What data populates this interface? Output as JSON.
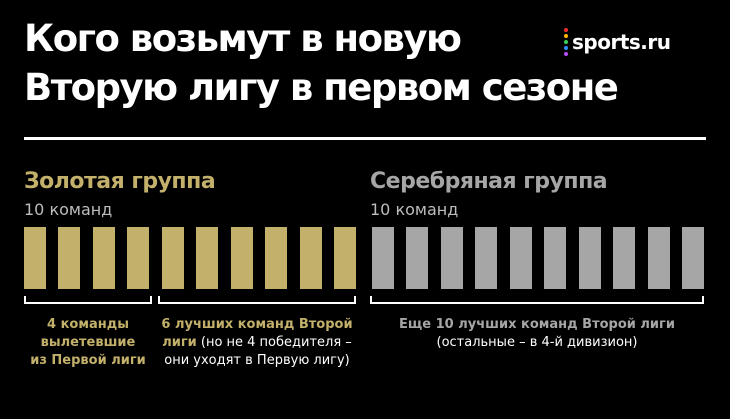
{
  "header": {
    "title_line1": "Кого возьмут в новую",
    "title_line2": "Вторую лигу в первом сезоне",
    "logo_text": "sports.ru",
    "logo_dot_colors": [
      "#ff2d2d",
      "#ffb400",
      "#3ad15a",
      "#2d8cff",
      "#b34dff"
    ]
  },
  "colors": {
    "gold": "#c2b06b",
    "silver": "#a6a6a6",
    "background": "#000000",
    "text": "#ffffff"
  },
  "gold_group": {
    "title": "Золотая группа",
    "count_label": "10 команд",
    "team_count": 10
  },
  "silver_group": {
    "title": "Серебряная группа",
    "count_label": "10 команд",
    "team_count": 10
  },
  "captions": {
    "relegated": {
      "line1": "4 команды",
      "line2": "вылетевшие",
      "line3": "из Первой лиги"
    },
    "best_six": {
      "bold": "6 лучших команд Второй",
      "bold2": "лиги",
      "normal2": " (но не 4 победителя –",
      "line3": "они уходят в Первую лигу)"
    },
    "next_ten": {
      "bold": "Еще 10 лучших команд Второй лиги",
      "normal": "(остальные – в 4-й дивизион)"
    }
  }
}
